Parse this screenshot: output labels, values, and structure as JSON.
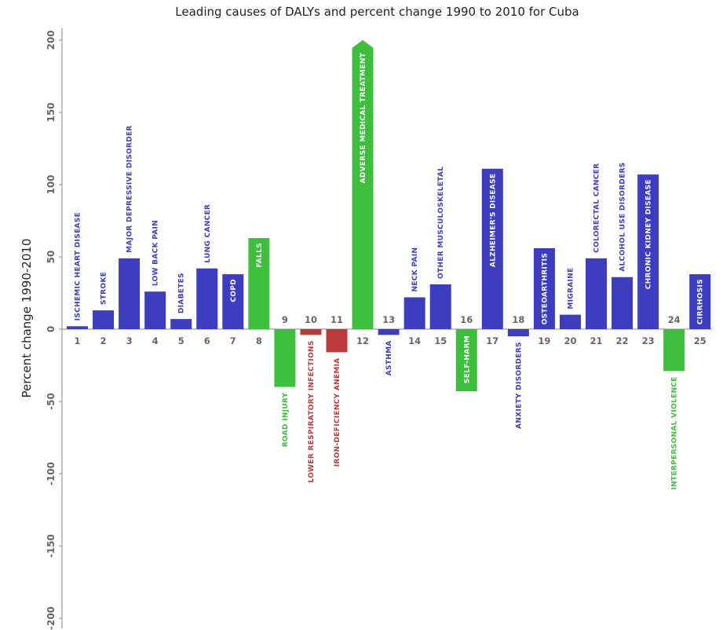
{
  "colors": {
    "blue": "#3d3dbf",
    "red": "#bd3a3a",
    "green": "#3dbf3d",
    "axis": "#888888"
  },
  "chart_data": {
    "type": "bar",
    "title": "Leading causes of DALYs and percent change 1990 to 2010 for Cuba",
    "ylabel": "Percent change 1990-2010",
    "xlabel": "",
    "ylim": [
      -200,
      200
    ],
    "yticks": [
      200,
      150,
      100,
      50,
      0,
      -50,
      -100,
      -150,
      -200
    ],
    "categories": [
      "1",
      "2",
      "3",
      "4",
      "5",
      "6",
      "7",
      "8",
      "9",
      "10",
      "11",
      "12",
      "13",
      "14",
      "15",
      "16",
      "17",
      "18",
      "19",
      "20",
      "21",
      "22",
      "23",
      "24",
      "25"
    ],
    "values": [
      2,
      13,
      49,
      26,
      7,
      42,
      38,
      63,
      -40,
      -4,
      -16,
      205,
      -4,
      22,
      31,
      -43,
      111,
      -5,
      56,
      10,
      49,
      36,
      107,
      -29,
      38
    ],
    "groups": [
      "blue",
      "blue",
      "blue",
      "blue",
      "blue",
      "blue",
      "blue",
      "green",
      "green",
      "red",
      "red",
      "green",
      "blue",
      "blue",
      "blue",
      "green",
      "blue",
      "blue",
      "blue",
      "blue",
      "blue",
      "blue",
      "blue",
      "green",
      "blue"
    ],
    "labels": [
      "ISCHEMIC HEART DISEASE",
      "STROKE",
      "MAJOR DEPRESSIVE DISORDER",
      "LOW BACK PAIN",
      "DIABETES",
      "LUNG CANCER",
      "COPD",
      "FALLS",
      "ROAD INJURY",
      "LOWER RESPIRATORY INFECTIONS",
      "IRON-DEFICIENCY ANEMIA",
      "ADVERSE MEDICAL TREATMENT",
      "ASTHMA",
      "NECK PAIN",
      "OTHER MUSCULOSKELETAL",
      "SELF-HARM",
      "ALZHEIMER'S DISEASE",
      "ANXIETY DISORDERS",
      "OSTEOARTHRITIS",
      "MIGRAINE",
      "COLORECTAL CANCER",
      "ALCOHOL USE DISORDERS",
      "CHRONIC KIDNEY DISEASE",
      "INTERPERSONAL VIOLENCE",
      "CIRRHOSIS"
    ]
  }
}
